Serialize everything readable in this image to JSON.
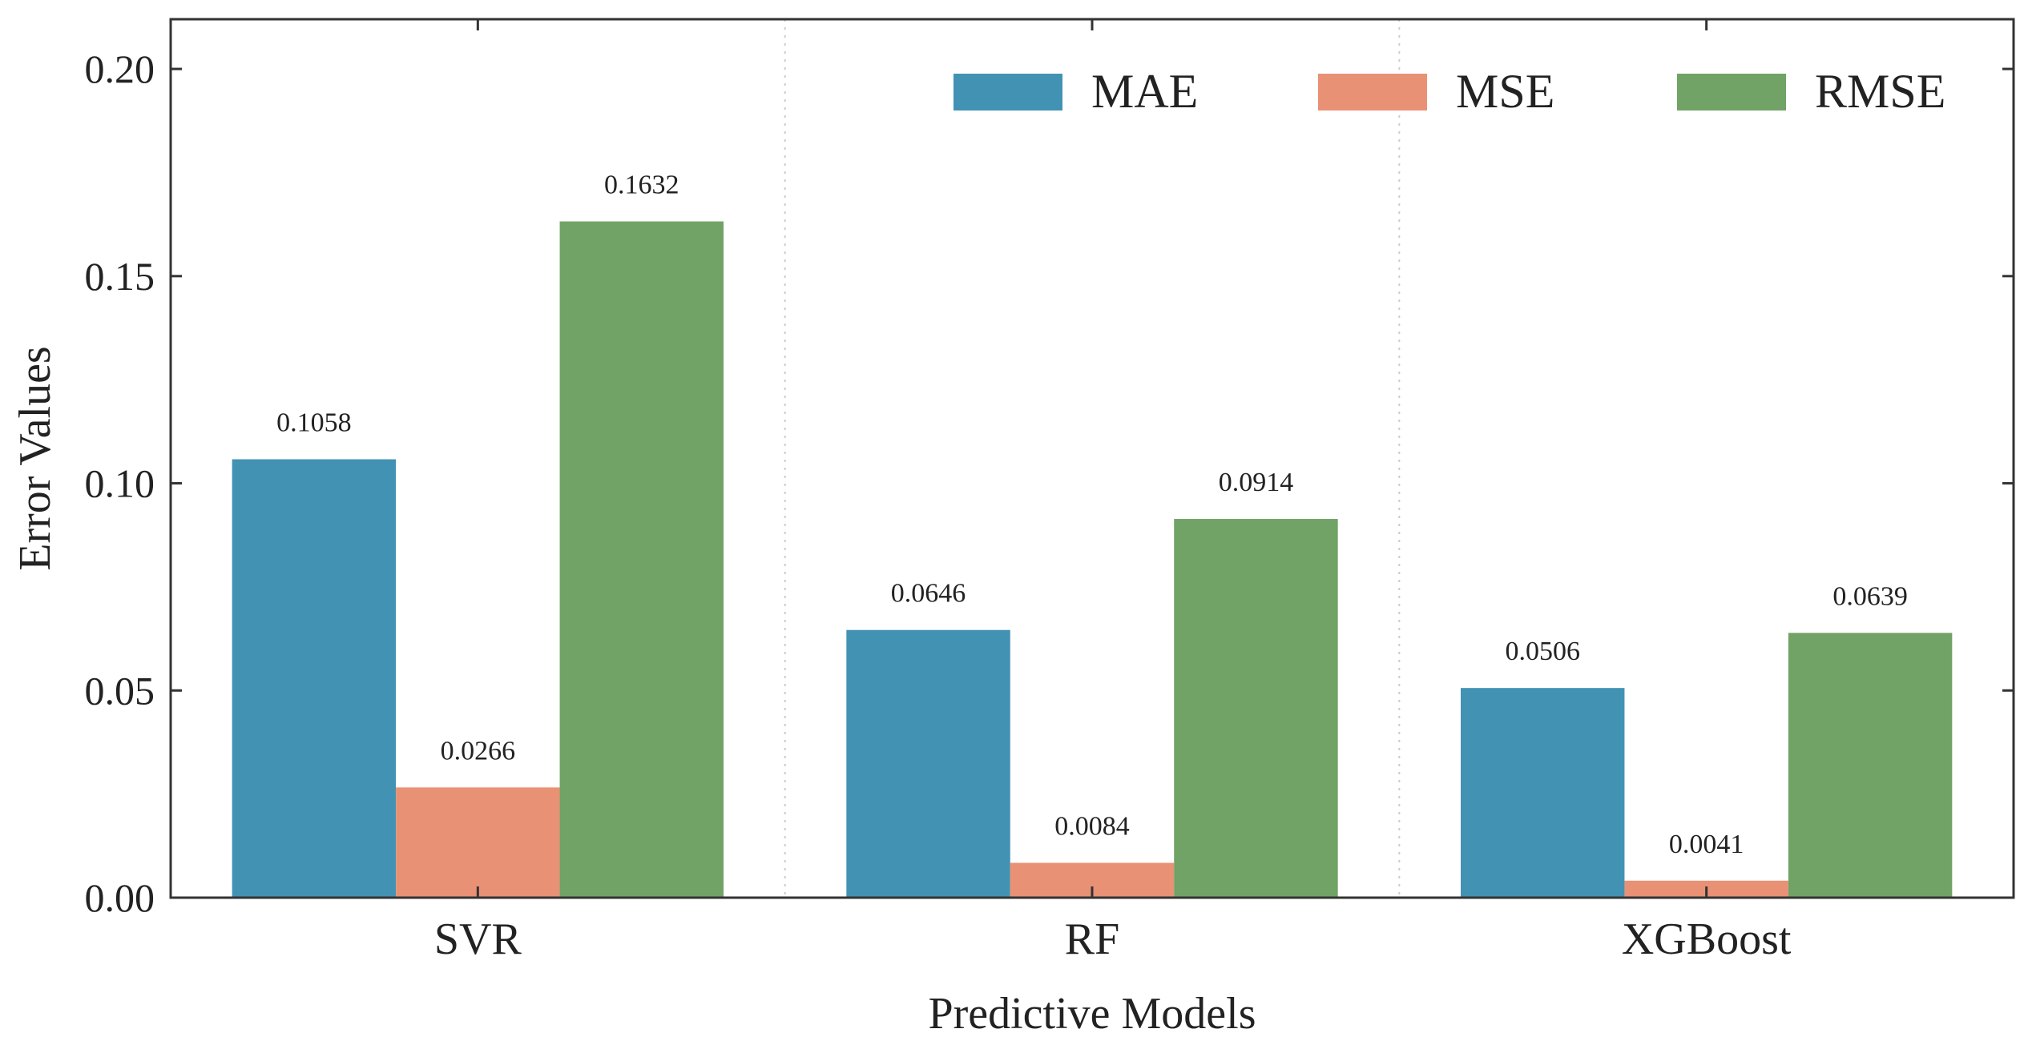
{
  "chart_data": {
    "type": "bar",
    "title": "",
    "xlabel": "Predictive Models",
    "ylabel": "Error Values",
    "categories": [
      "SVR",
      "RF",
      "XGBoost"
    ],
    "series": [
      {
        "name": "MAE",
        "color": "#4292b3",
        "values": [
          0.1058,
          0.0646,
          0.0506
        ],
        "labels": [
          "0.1058",
          "0.0646",
          "0.0506"
        ]
      },
      {
        "name": "MSE",
        "color": "#e99175",
        "values": [
          0.0266,
          0.0084,
          0.0041
        ],
        "labels": [
          "0.0266",
          "0.0084",
          "0.0041"
        ]
      },
      {
        "name": "RMSE",
        "color": "#70a365",
        "values": [
          0.1632,
          0.0914,
          0.0639
        ],
        "labels": [
          "0.1632",
          "0.0914",
          "0.0639"
        ]
      }
    ],
    "ylim": [
      0,
      0.212
    ],
    "yticks": [
      0.0,
      0.05,
      0.1,
      0.15,
      0.2
    ],
    "ytick_labels": [
      "0.00",
      "0.05",
      "0.10",
      "0.15",
      "0.20"
    ],
    "grid": "vertical-dotted-between-groups",
    "legend_position": "top-right"
  }
}
